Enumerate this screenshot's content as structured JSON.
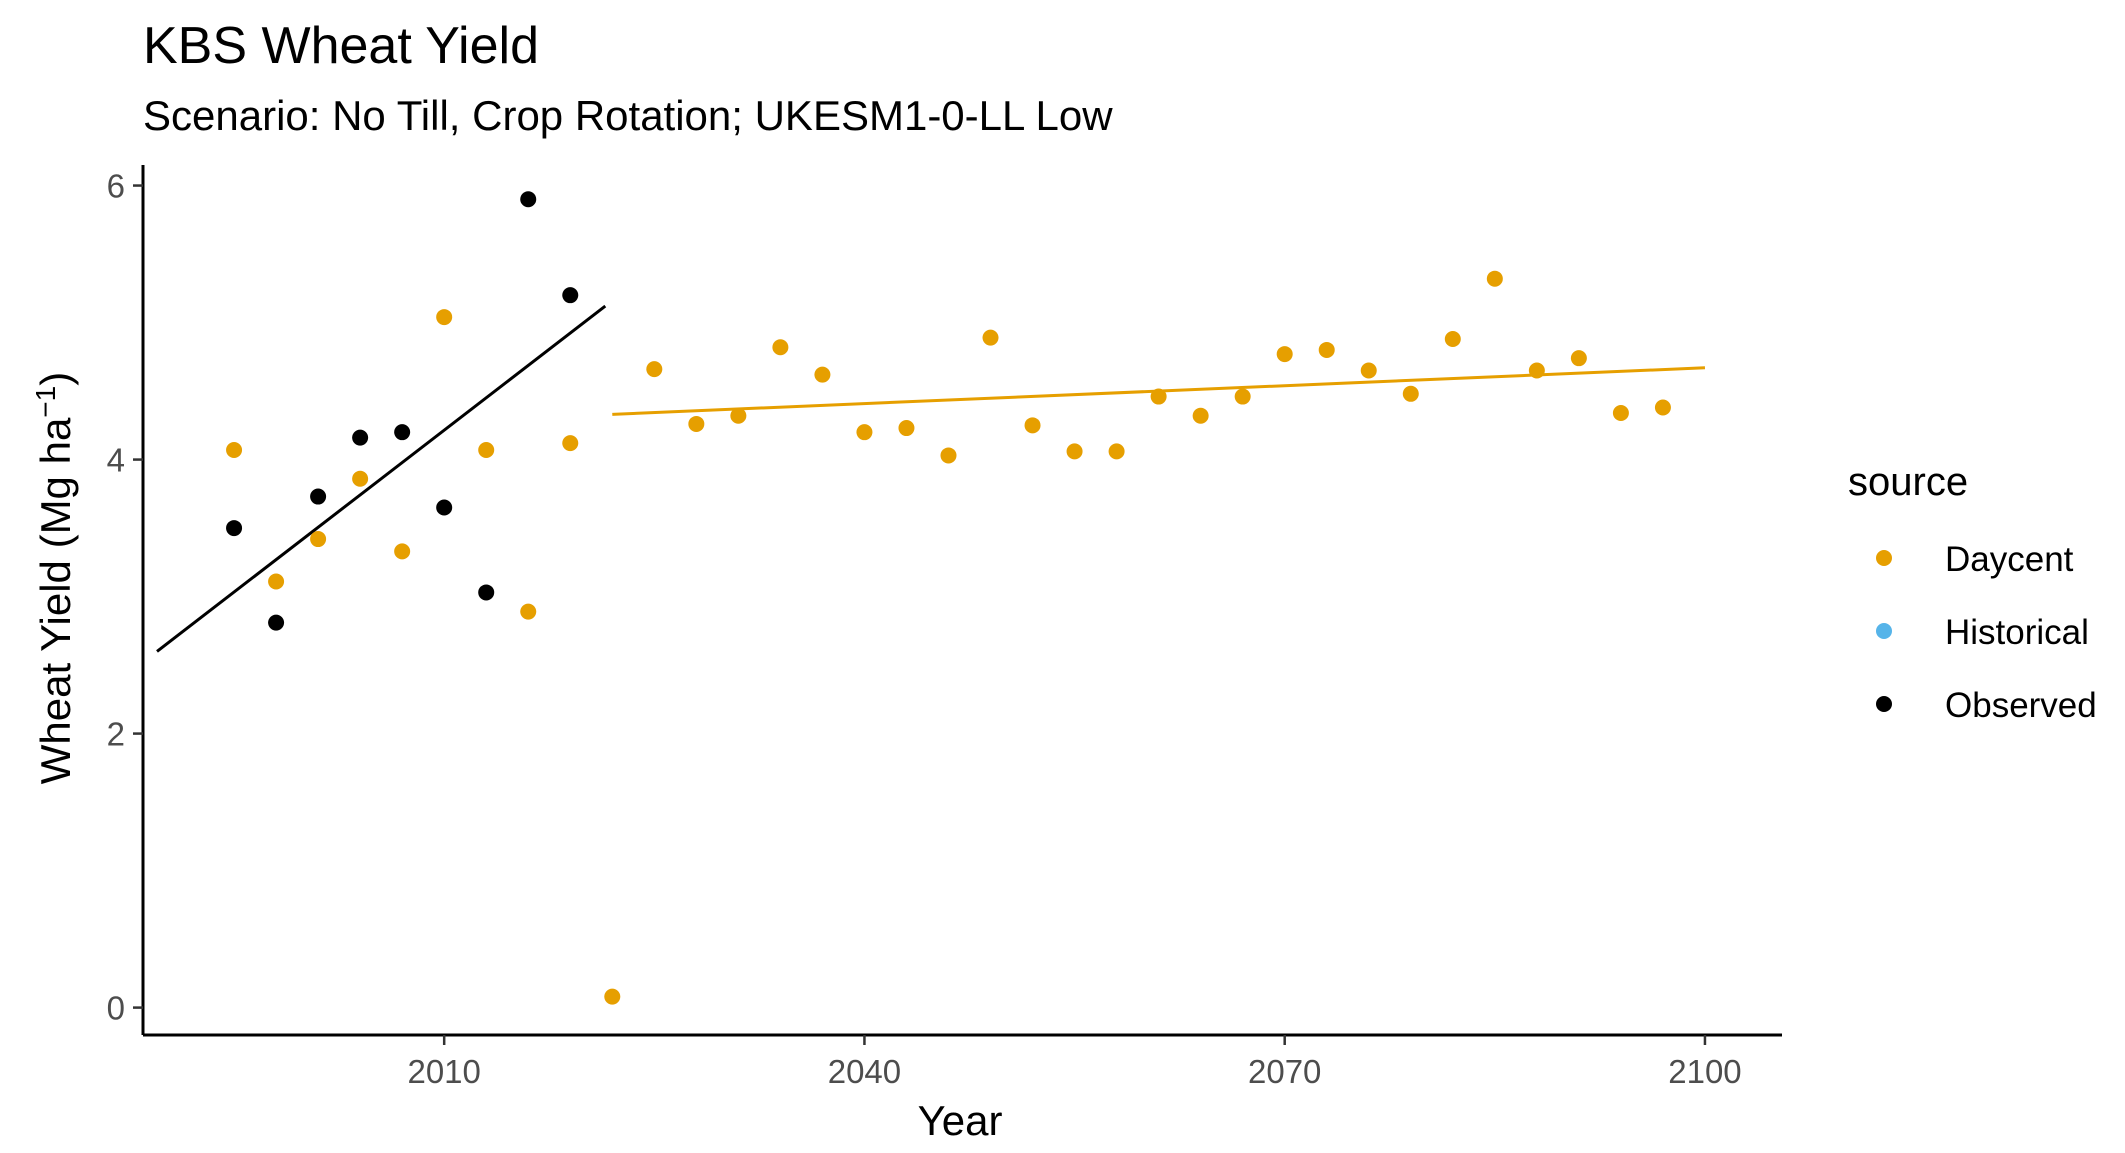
{
  "chart_data": {
    "type": "scatter",
    "title": "KBS Wheat Yield",
    "subtitle": "Scenario: No Till, Crop Rotation; UKESM1-0-LL Low",
    "xlabel": "Year",
    "ylabel": "Wheat Yield (Mg ha",
    "ylabel_sup": "−1",
    "ylabel_close": ")",
    "xlim": [
      1988.5,
      2105.5
    ],
    "ylim": [
      -0.2,
      6.15
    ],
    "xticks": [
      2010,
      2040,
      2070,
      2100
    ],
    "xtick_labels": [
      "2010",
      "2040",
      "2070",
      "2100"
    ],
    "yticks": [
      0,
      2,
      4,
      6
    ],
    "ytick_labels": [
      "0",
      "2",
      "4",
      "6"
    ],
    "grid": false,
    "legend": {
      "title": "source",
      "position": "right",
      "entries": [
        {
          "label": "Daycent",
          "color": "#E69F00"
        },
        {
          "label": "Historical",
          "color": "#56B4E9"
        },
        {
          "label": "Observed",
          "color": "#000000"
        }
      ]
    },
    "series": [
      {
        "name": "Daycent",
        "color": "#E69F00",
        "points": [
          [
            1995,
            4.07
          ],
          [
            1998,
            3.11
          ],
          [
            2001,
            3.42
          ],
          [
            2004,
            3.86
          ],
          [
            2007,
            3.33
          ],
          [
            2010,
            5.04
          ],
          [
            2013,
            4.07
          ],
          [
            2016,
            2.89
          ],
          [
            2019,
            4.12
          ],
          [
            2022,
            0.08
          ],
          [
            2025,
            4.66
          ],
          [
            2028,
            4.26
          ],
          [
            2031,
            4.32
          ],
          [
            2034,
            4.82
          ],
          [
            2037,
            4.62
          ],
          [
            2040,
            4.2
          ],
          [
            2043,
            4.23
          ],
          [
            2046,
            4.03
          ],
          [
            2049,
            4.89
          ],
          [
            2052,
            4.25
          ],
          [
            2055,
            4.06
          ],
          [
            2058,
            4.06
          ],
          [
            2061,
            4.46
          ],
          [
            2064,
            4.32
          ],
          [
            2067,
            4.46
          ],
          [
            2070,
            4.77
          ],
          [
            2073,
            4.8
          ],
          [
            2076,
            4.65
          ],
          [
            2079,
            4.48
          ],
          [
            2082,
            4.88
          ],
          [
            2085,
            5.32
          ],
          [
            2088,
            4.65
          ],
          [
            2091,
            4.74
          ],
          [
            2094,
            4.34
          ],
          [
            2097,
            4.38
          ]
        ]
      },
      {
        "name": "Observed",
        "color": "#000000",
        "points": [
          [
            1995,
            3.5
          ],
          [
            1998,
            2.81
          ],
          [
            2001,
            3.73
          ],
          [
            2004,
            4.16
          ],
          [
            2007,
            4.2
          ],
          [
            2010,
            3.65
          ],
          [
            2013,
            3.03
          ],
          [
            2016,
            5.9
          ],
          [
            2019,
            5.2
          ]
        ]
      }
    ],
    "trend_lines": [
      {
        "name": "Observed",
        "color": "#000000",
        "x": [
          1989.5,
          2021.5
        ],
        "y": [
          2.6,
          5.12
        ]
      },
      {
        "name": "Daycent",
        "color": "#E69F00",
        "x": [
          2022,
          2100
        ],
        "y": [
          4.33,
          4.67
        ]
      }
    ]
  }
}
